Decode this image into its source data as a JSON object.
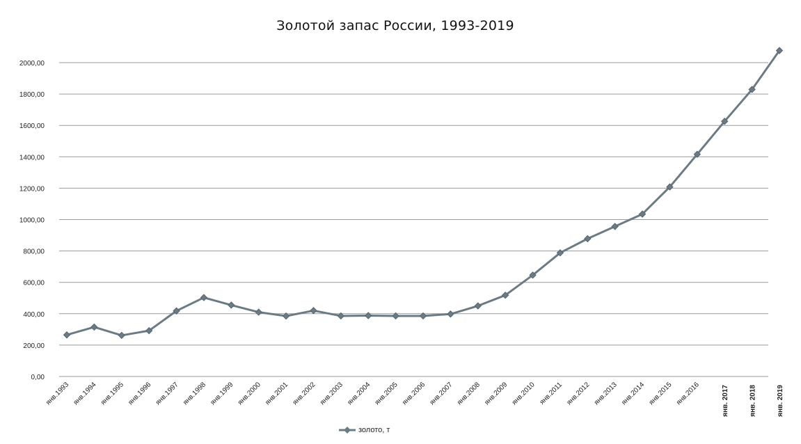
{
  "chart_data": {
    "type": "line",
    "title": "Золотой запас России, 1993-2019",
    "xlabel": "",
    "ylabel": "",
    "ylim": [
      0,
      2000
    ],
    "y_ticks": [
      "0,00",
      "200,00",
      "400,00",
      "600,00",
      "800,00",
      "1000,00",
      "1200,00",
      "1400,00",
      "1600,00",
      "1800,00",
      "2000,00"
    ],
    "categories": [
      "янв.1993",
      "янв.1994",
      "янв.1995",
      "янв.1996",
      "янв.1997",
      "янв.1998",
      "янв.1999",
      "янв.2000",
      "янв.2001",
      "янв.2002",
      "янв.2003",
      "янв.2004",
      "янв.2005",
      "янв.2006",
      "янв.2007",
      "янв.2008",
      "янв.2009",
      "янв.2010",
      "янв.2011",
      "янв.2012",
      "янв.2013",
      "янв.2014",
      "янв.2015",
      "янв.2016",
      "янв. 2017",
      "янв. 2018",
      "янв. 2019"
    ],
    "series": [
      {
        "name": "золото, т",
        "color": "#6b7b85",
        "values": [
          265,
          315,
          262,
          292,
          418,
          503,
          455,
          410,
          385,
          420,
          386,
          388,
          386,
          386,
          398,
          450,
          518,
          646,
          788,
          878,
          956,
          1035,
          1208,
          1416,
          1626,
          1829,
          2077
        ]
      }
    ],
    "grid": true,
    "legend_position": "bottom"
  }
}
